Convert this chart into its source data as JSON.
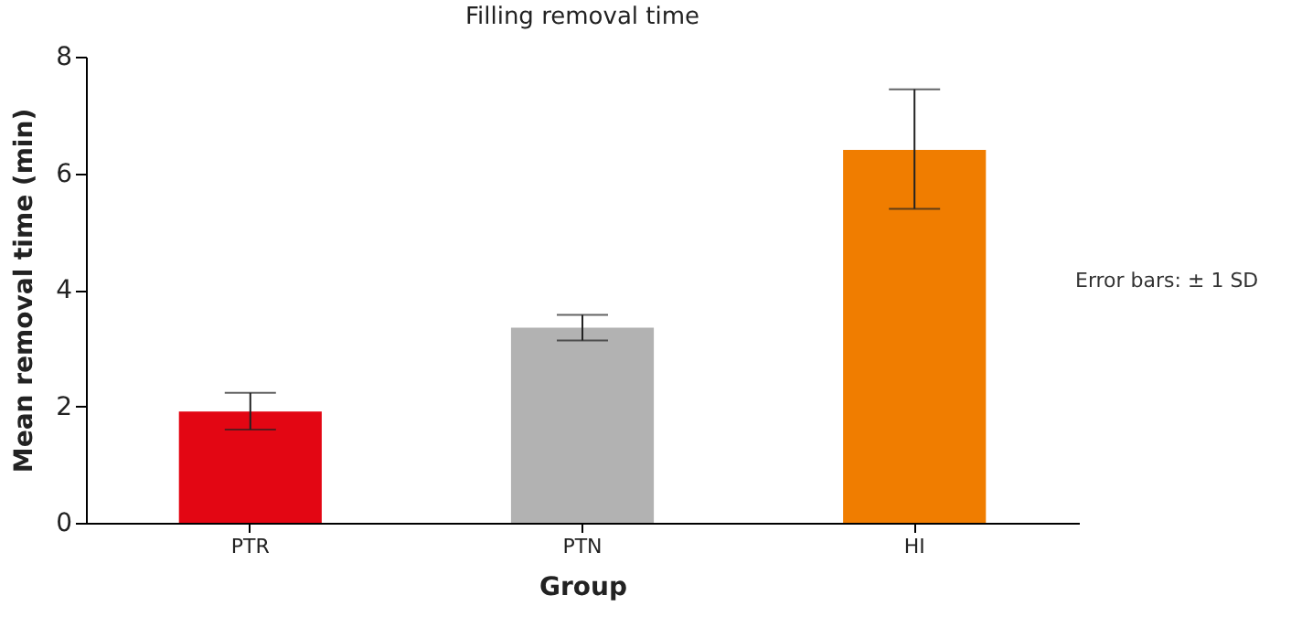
{
  "chart_data": {
    "type": "bar",
    "title": "Filling removal time",
    "xlabel": "Group",
    "ylabel": "Mean removal time (min)",
    "categories": [
      "PTR",
      "PTN",
      "HI"
    ],
    "values": [
      1.91,
      3.35,
      6.4
    ],
    "colors": [
      "#e30613",
      "#b2b2b2",
      "#f07d00"
    ],
    "errors": [
      [
        1.6,
        2.23
      ],
      [
        3.13,
        3.57
      ],
      [
        5.39,
        7.44
      ]
    ],
    "ylim": [
      0,
      8
    ],
    "yticks": [
      0,
      2,
      4,
      6,
      8
    ],
    "grid": false,
    "legend": false,
    "annotations": [
      "Error bars: ± 1 SD"
    ]
  }
}
